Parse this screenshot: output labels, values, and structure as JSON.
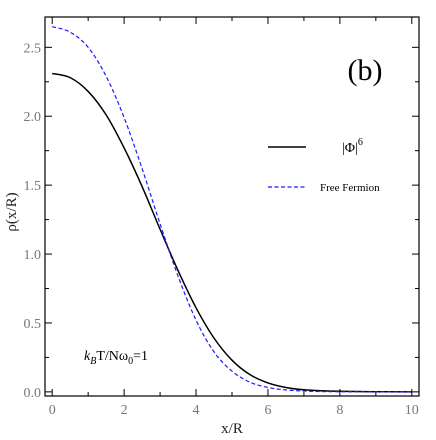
{
  "chart_data": {
    "type": "line",
    "panel_label": "(b)",
    "xlabel": "x/R",
    "ylabel": "ρ(x/R)",
    "xlim": [
      -0.2,
      10.2
    ],
    "ylim": [
      -0.03,
      2.72
    ],
    "x_ticks": [
      0,
      2,
      4,
      6,
      8,
      10
    ],
    "y_ticks": [
      0.0,
      0.5,
      1.0,
      1.5,
      2.0,
      2.5
    ],
    "x_tick_labels": [
      "0",
      "2",
      "4",
      "6",
      "8",
      "10"
    ],
    "y_tick_labels": [
      "0.0",
      "0.5",
      "1.0",
      "1.5",
      "2.0",
      "2.5"
    ],
    "grid": false,
    "legend_position": "right",
    "annotation": {
      "k": "k",
      "k_sub": "B",
      "rest": "T/Nω",
      "rest_sub": "0",
      "tail": "=1"
    },
    "series": [
      {
        "name": "|Φ|",
        "name_sup": "6",
        "color": "#000000",
        "style": "solid",
        "x": [
          0,
          0.5,
          1,
          1.5,
          2,
          2.5,
          3,
          3.5,
          4,
          4.5,
          5,
          5.5,
          6,
          6.5,
          7,
          7.5,
          8,
          9,
          10
        ],
        "y": [
          2.31,
          2.28,
          2.18,
          2.01,
          1.77,
          1.49,
          1.18,
          0.88,
          0.61,
          0.39,
          0.23,
          0.125,
          0.065,
          0.032,
          0.015,
          0.008,
          0.004,
          0.001,
          0.0003
        ]
      },
      {
        "name": "Free Fermion",
        "color": "#1a1aff",
        "style": "dashed",
        "x": [
          0,
          0.5,
          1,
          1.5,
          2,
          2.5,
          3,
          3.5,
          4,
          4.5,
          5,
          5.5,
          6,
          6.5,
          7,
          7.5,
          8,
          9,
          10
        ],
        "y": [
          2.65,
          2.61,
          2.5,
          2.29,
          1.99,
          1.62,
          1.22,
          0.84,
          0.52,
          0.29,
          0.15,
          0.07,
          0.032,
          0.014,
          0.006,
          0.0025,
          0.001,
          0.0002,
          0.0
        ]
      }
    ]
  }
}
